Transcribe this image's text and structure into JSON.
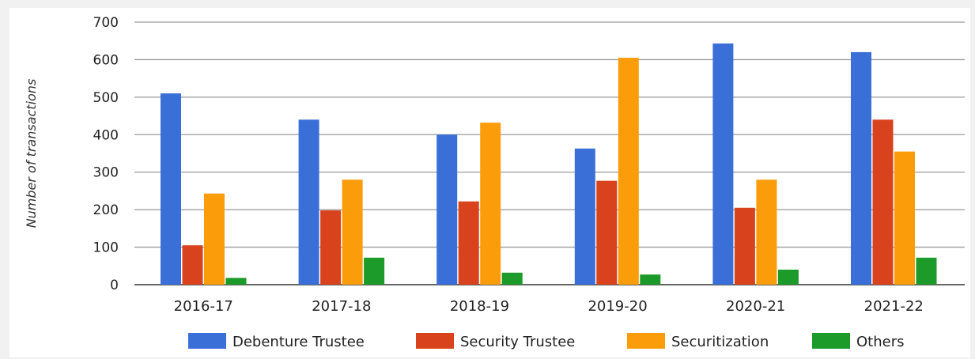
{
  "chart_data": {
    "type": "bar",
    "title": "",
    "xlabel": "",
    "ylabel": "Number of transactions",
    "ylim": [
      0,
      700
    ],
    "yticks": [
      0,
      100,
      200,
      300,
      400,
      500,
      600,
      700
    ],
    "grid": true,
    "legend_position": "bottom",
    "categories": [
      "2016-17",
      "2017-18",
      "2018-19",
      "2019-20",
      "2020-21",
      "2021-22"
    ],
    "series": [
      {
        "name": "Debenture Trustee",
        "color": "#3a6fd8",
        "values": [
          510,
          440,
          400,
          363,
          643,
          620
        ]
      },
      {
        "name": "Security Trustee",
        "color": "#d8421c",
        "values": [
          105,
          198,
          222,
          277,
          205,
          440
        ]
      },
      {
        "name": "Securitization",
        "color": "#fb9d0b",
        "values": [
          243,
          280,
          432,
          605,
          280,
          355
        ]
      },
      {
        "name": "Others",
        "color": "#1c9a2a",
        "values": [
          18,
          72,
          32,
          27,
          40,
          72
        ]
      }
    ]
  }
}
